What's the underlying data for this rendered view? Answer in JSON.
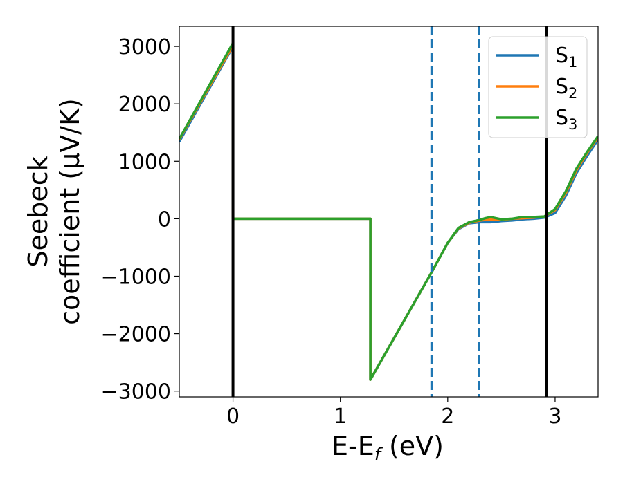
{
  "chart_data": {
    "type": "line",
    "xlabel": "E-E",
    "xlabel_sub": "f",
    "xlabel_unit": " (eV)",
    "ylabel_line1": "Seebeck",
    "ylabel_line2": "coefficient  (μV/K)",
    "xlim": [
      -0.5,
      3.4
    ],
    "ylim": [
      -3100,
      3350
    ],
    "x_ticks": [
      0,
      1,
      2,
      3
    ],
    "x_tick_labels": [
      "0",
      "1",
      "2",
      "3"
    ],
    "y_ticks": [
      -3000,
      -2000,
      -1000,
      0,
      1000,
      2000,
      3000
    ],
    "y_tick_labels": [
      "−3000",
      "−2000",
      "−1000",
      "0",
      "1000",
      "2000",
      "3000"
    ],
    "legend_position": "top-right",
    "series": [
      {
        "name": "S",
        "sub": "1",
        "color": "#1f77b4",
        "points": [
          [
            -0.5,
            1340
          ],
          [
            0.0,
            3000
          ],
          [
            0.0,
            0
          ],
          [
            1.28,
            0
          ],
          [
            1.28,
            -2800
          ],
          [
            1.85,
            -930
          ],
          [
            2.0,
            -420
          ],
          [
            2.1,
            -180
          ],
          [
            2.2,
            -80
          ],
          [
            2.3,
            -60
          ],
          [
            2.4,
            -60
          ],
          [
            2.5,
            -40
          ],
          [
            2.6,
            -30
          ],
          [
            2.7,
            -10
          ],
          [
            2.8,
            0
          ],
          [
            2.9,
            20
          ],
          [
            3.0,
            100
          ],
          [
            3.1,
            400
          ],
          [
            3.2,
            800
          ],
          [
            3.3,
            1100
          ],
          [
            3.4,
            1380
          ]
        ]
      },
      {
        "name": "S",
        "sub": "2",
        "color": "#ff7f0e",
        "points": [
          [
            -0.5,
            1380
          ],
          [
            0.0,
            3020
          ],
          [
            0.0,
            0
          ],
          [
            1.28,
            0
          ],
          [
            1.28,
            -2800
          ],
          [
            1.85,
            -930
          ],
          [
            2.0,
            -420
          ],
          [
            2.1,
            -170
          ],
          [
            2.2,
            -70
          ],
          [
            2.3,
            -30
          ],
          [
            2.4,
            -10
          ],
          [
            2.5,
            -20
          ],
          [
            2.6,
            0
          ],
          [
            2.7,
            10
          ],
          [
            2.8,
            20
          ],
          [
            2.9,
            40
          ],
          [
            3.0,
            150
          ],
          [
            3.1,
            450
          ],
          [
            3.2,
            850
          ],
          [
            3.3,
            1150
          ],
          [
            3.4,
            1420
          ]
        ]
      },
      {
        "name": "S",
        "sub": "3",
        "color": "#2ca02c",
        "points": [
          [
            -0.5,
            1390
          ],
          [
            0.0,
            3060
          ],
          [
            0.0,
            0
          ],
          [
            1.28,
            0
          ],
          [
            1.28,
            -2800
          ],
          [
            1.85,
            -930
          ],
          [
            2.0,
            -420
          ],
          [
            2.1,
            -160
          ],
          [
            2.2,
            -60
          ],
          [
            2.3,
            -20
          ],
          [
            2.35,
            10
          ],
          [
            2.4,
            30
          ],
          [
            2.45,
            10
          ],
          [
            2.5,
            -10
          ],
          [
            2.6,
            0
          ],
          [
            2.7,
            30
          ],
          [
            2.8,
            30
          ],
          [
            2.9,
            40
          ],
          [
            3.0,
            170
          ],
          [
            3.1,
            480
          ],
          [
            3.2,
            880
          ],
          [
            3.3,
            1170
          ],
          [
            3.4,
            1440
          ]
        ]
      }
    ],
    "vlines_solid": [
      0.0,
      2.92
    ],
    "vlines_dashed": [
      1.85,
      2.29
    ],
    "vline_solid_color": "#000000",
    "vline_dashed_color": "#1f77b4"
  }
}
